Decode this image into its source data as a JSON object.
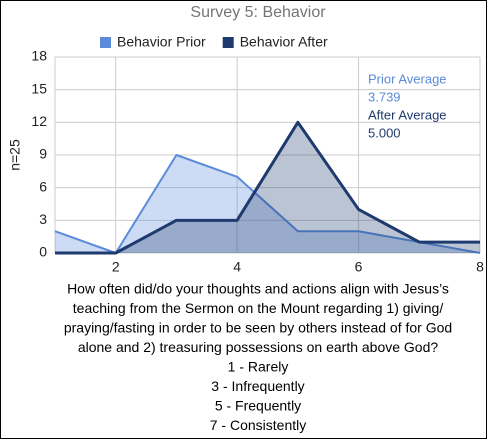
{
  "chart_data": {
    "type": "area",
    "title": "Survey 5: Behavior",
    "ylabel": "n=25",
    "x": [
      1,
      2,
      3,
      4,
      5,
      6,
      7,
      8
    ],
    "series": [
      {
        "name": "Behavior Prior",
        "color": "#5b8bd9",
        "values": [
          2,
          0,
          9,
          7,
          2,
          2,
          1,
          0
        ]
      },
      {
        "name": "Behavior After",
        "color": "#1f3a6e",
        "values": [
          0,
          0,
          3,
          3,
          12,
          4,
          1,
          1
        ]
      }
    ],
    "xlim": [
      1,
      8
    ],
    "xticks": [
      2,
      4,
      6,
      8
    ],
    "ylim": [
      0,
      18
    ],
    "yticks": [
      0,
      3,
      6,
      9,
      12,
      15,
      18
    ],
    "grid": true,
    "legend": "top",
    "annotations": [
      {
        "text": "Prior Average",
        "color": "#5b8bd9"
      },
      {
        "text": "3.739",
        "color": "#5b8bd9"
      },
      {
        "text": "After Average",
        "color": "#1f3a6e"
      },
      {
        "text": "5.000",
        "color": "#1f3a6e"
      }
    ],
    "xlabel_lines": [
      "How often did/do your thoughts and actions align with Jesus’s",
      "teaching from the Sermon on the Mount regarding 1) giving/",
      "praying/fasting in order to be seen by others instead of for God",
      "alone and 2) treasuring possessions on earth above God?",
      "1 - Rarely",
      "3 - Infrequently",
      "5 - Frequently",
      "7 - Consistently"
    ]
  }
}
